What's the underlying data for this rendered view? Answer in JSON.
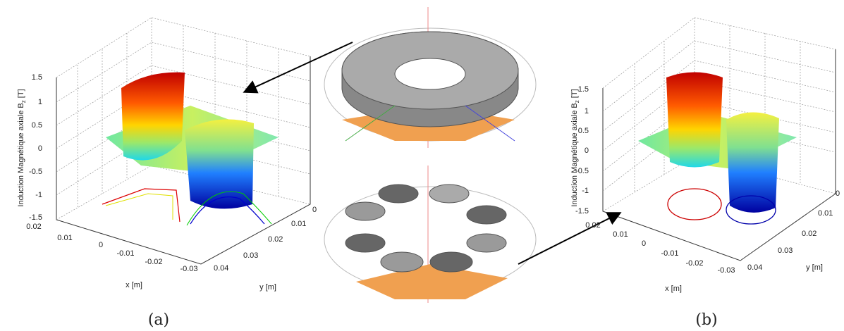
{
  "panels": [
    {
      "label": "(a)",
      "z_axis": {
        "title": {
          "text": "Induction Magnétique axiale B",
          "sub": "z",
          "unit": "[T]"
        },
        "ticks": [
          "1.5",
          "1",
          "0.5",
          "0",
          "-0.5",
          "-1",
          "-1.5"
        ]
      },
      "x_axis": {
        "title": "x [m]",
        "ticks": [
          "0.02",
          "0.01",
          "0",
          "-0.01",
          "-0.02",
          "-0.03"
        ]
      },
      "y_axis": {
        "title": "y [m]",
        "ticks": [
          "0.04",
          "0.03",
          "0.02",
          "0.01",
          "0"
        ]
      }
    },
    {
      "label": "(b)",
      "z_axis": {
        "title": {
          "text": "Induction Magnétique axiale B",
          "sub": "z",
          "unit": "[T]"
        },
        "ticks": [
          "1.5",
          "1",
          "0.5",
          "0",
          "-0.5",
          "-1",
          "-1.5"
        ]
      },
      "x_axis": {
        "title": "x [m]",
        "ticks": [
          "0.02",
          "0.01",
          "0",
          "-0.01",
          "-0.02",
          "-0.03"
        ]
      },
      "y_axis": {
        "title": "y [m]",
        "ticks": [
          "0.04",
          "0.03",
          "0.02",
          "0.01",
          "0"
        ]
      }
    }
  ]
}
